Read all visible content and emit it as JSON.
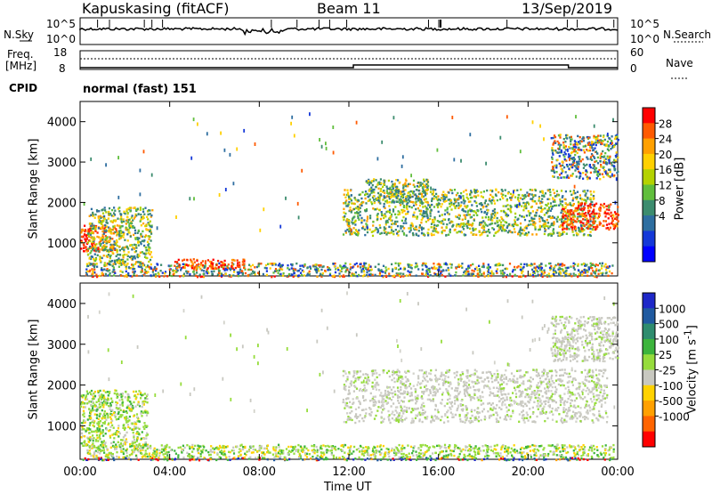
{
  "header": {
    "radar": "Kapuskasing (fitACF)",
    "beam": "Beam 11",
    "date": "13/Sep/2019"
  },
  "noise_panel": {
    "left_label": "N.Sky",
    "left_ticks": [
      "10^5",
      "10^0"
    ],
    "right_label": "N.Search",
    "right_ticks": [
      "10^5",
      "10^0"
    ]
  },
  "freq_panel": {
    "left_label_1": "Freq.",
    "left_label_2": "[MHz]",
    "left_ticks": [
      "18",
      "8"
    ],
    "right_label": "Nave",
    "right_ticks": [
      "60",
      "0"
    ]
  },
  "cpid": {
    "label": "CPID",
    "mode": "normal (fast) 151"
  },
  "chart_data": [
    {
      "type": "heatmap",
      "panel": "power",
      "ylabel": "Slant Range [km]",
      "xlabel": "",
      "ylim": [
        180,
        4500
      ],
      "x_ticks": [
        "00:00",
        "04:00",
        "08:00",
        "12:00",
        "16:00",
        "20:00",
        "00:00"
      ],
      "y_ticks": [
        1000,
        2000,
        3000,
        4000
      ],
      "colorbar": {
        "label": "Power [dB]",
        "ticks": [
          "28",
          "24",
          "20",
          "16",
          "12",
          "8",
          "4"
        ],
        "colors": [
          "#ff0000",
          "#ff5a00",
          "#ffa000",
          "#ffd000",
          "#b4d200",
          "#60be3c",
          "#3c8c6e",
          "#2e6ea0",
          "#1438d8",
          "#0000ff"
        ]
      },
      "regions": [
        {
          "t0": 0.1,
          "t1": 23.9,
          "r0": 180,
          "r1": 200,
          "level": "high"
        },
        {
          "t0": 0.2,
          "t1": 23.8,
          "r0": 200,
          "r1": 520,
          "level": "low"
        },
        {
          "t0": 4.2,
          "t1": 7.3,
          "r0": 380,
          "r1": 620,
          "level": "high"
        },
        {
          "t0": 0.0,
          "t1": 1.6,
          "r0": 800,
          "r1": 1450,
          "level": "high"
        },
        {
          "t0": 0.3,
          "t1": 3.2,
          "r0": 500,
          "r1": 1900,
          "level": "mid"
        },
        {
          "t0": 11.7,
          "t1": 23.0,
          "r0": 1200,
          "r1": 2350,
          "level": "mid"
        },
        {
          "t0": 21.5,
          "t1": 24.0,
          "r0": 1350,
          "r1": 2000,
          "level": "high"
        },
        {
          "t0": 21.0,
          "t1": 24.0,
          "r0": 2600,
          "r1": 3700,
          "level": "low"
        },
        {
          "t0": 12.7,
          "t1": 15.5,
          "r0": 2000,
          "r1": 2600,
          "level": "mid"
        }
      ]
    },
    {
      "type": "heatmap",
      "panel": "velocity",
      "ylabel": "Slant Range [km]",
      "xlabel": "Time UT",
      "ylim": [
        180,
        4500
      ],
      "x_ticks": [
        "00:00",
        "04:00",
        "08:00",
        "12:00",
        "16:00",
        "20:00",
        "00:00"
      ],
      "y_ticks": [
        1000,
        2000,
        3000,
        4000
      ],
      "colorbar": {
        "label": "Velocity [m s^-1]",
        "ticks": [
          "1000",
          "500",
          "100",
          "25",
          "-25",
          "-100",
          "-500",
          "-1000"
        ],
        "colors": [
          "#1e28c8",
          "#205aa0",
          "#2e8c6e",
          "#3cb43c",
          "#96dc3c",
          "#c8c8c0",
          "#ffd200",
          "#ffa000",
          "#ff6400",
          "#ff0000"
        ]
      },
      "regions": [
        {
          "t0": 0.1,
          "t1": 23.9,
          "r0": 180,
          "r1": 240,
          "level": "mixed"
        },
        {
          "t0": 0.2,
          "t1": 23.8,
          "r0": 240,
          "r1": 560,
          "level": "positive"
        },
        {
          "t0": 0.0,
          "t1": 3.0,
          "r0": 500,
          "r1": 1900,
          "level": "positive"
        },
        {
          "t0": 11.7,
          "t1": 23.5,
          "r0": 1100,
          "r1": 2400,
          "level": "near-zero"
        },
        {
          "t0": 21.0,
          "t1": 24.0,
          "r0": 2600,
          "r1": 3700,
          "level": "near-zero"
        }
      ]
    }
  ]
}
